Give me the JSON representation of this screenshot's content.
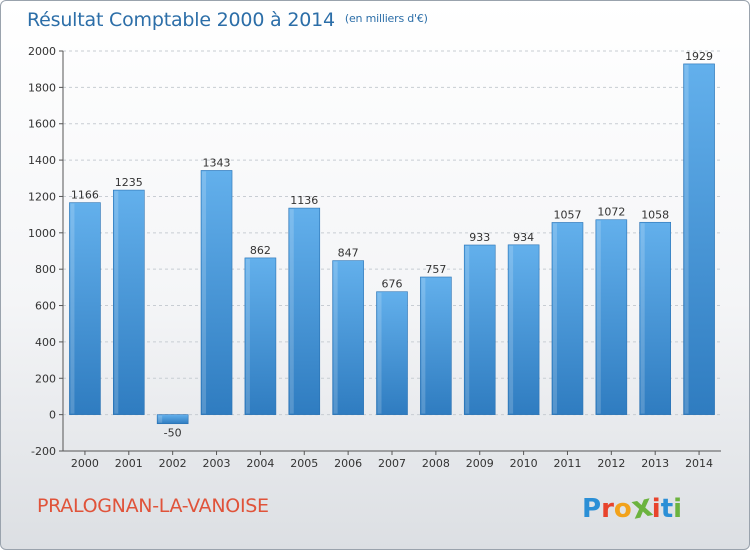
{
  "header": {
    "title": "Résultat Comptable 2000 à 2014",
    "subtitle": "(en milliers d'€)"
  },
  "footer": {
    "city": "PRALOGNAN-LA-VANOISE",
    "brand": "Proxiti",
    "brand_colors": [
      "#2b8fd6",
      "#e8432c",
      "#f2a21b",
      "#6cb33f",
      "#e8432c",
      "#2b8fd6",
      "#6cb33f"
    ]
  },
  "colors": {
    "bar_light": "#63b0ec",
    "bar_dark": "#2f7cc0",
    "grid": "#c8cdd3",
    "axis": "#555555"
  },
  "chart_data": {
    "type": "bar",
    "title": "Résultat Comptable 2000 à 2014",
    "subtitle": "(en milliers d'€)",
    "xlabel": "",
    "ylabel": "",
    "categories": [
      "2000",
      "2001",
      "2002",
      "2003",
      "2004",
      "2005",
      "2006",
      "2007",
      "2008",
      "2009",
      "2010",
      "2011",
      "2012",
      "2013",
      "2014"
    ],
    "values": [
      1166,
      1235,
      -50,
      1343,
      862,
      1136,
      847,
      676,
      757,
      933,
      934,
      1057,
      1072,
      1058,
      1929
    ],
    "ylim": [
      -200,
      2000
    ],
    "yticks": [
      -200,
      0,
      200,
      400,
      600,
      800,
      1000,
      1200,
      1400,
      1600,
      1800,
      2000
    ],
    "grid": true,
    "data_labels": true
  }
}
